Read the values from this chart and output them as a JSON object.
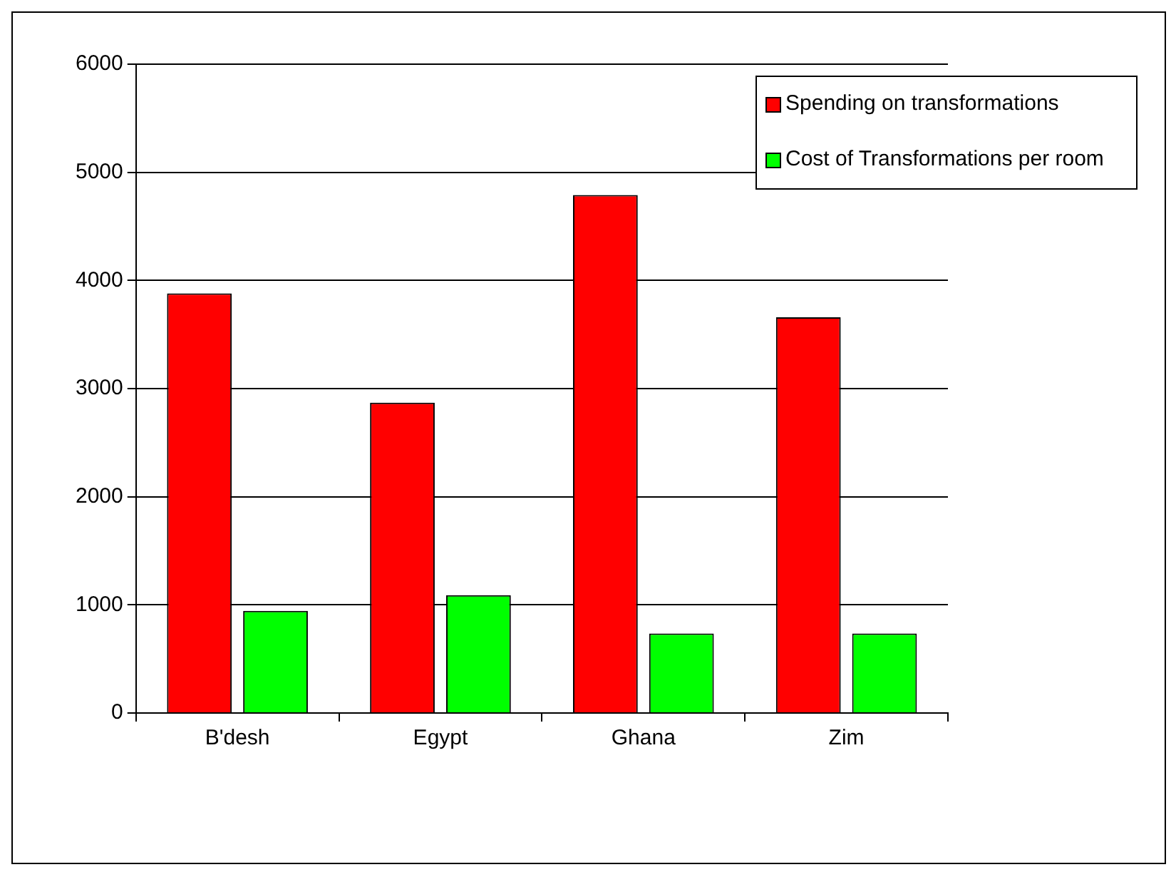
{
  "chart_data": {
    "type": "bar",
    "categories": [
      "B'desh",
      "Egypt",
      "Ghana",
      "Zim"
    ],
    "series": [
      {
        "name": "Spending on transformations",
        "color": "#ff0000",
        "values": [
          3880,
          2870,
          4790,
          3660
        ]
      },
      {
        "name": "Cost of Transformations per room",
        "color": "#00ff00",
        "values": [
          945,
          1090,
          735,
          735
        ]
      }
    ],
    "ylim": [
      0,
      6000
    ],
    "yticks": [
      0,
      1000,
      2000,
      3000,
      4000,
      5000,
      6000
    ],
    "grid": "y",
    "legend": "top right"
  }
}
